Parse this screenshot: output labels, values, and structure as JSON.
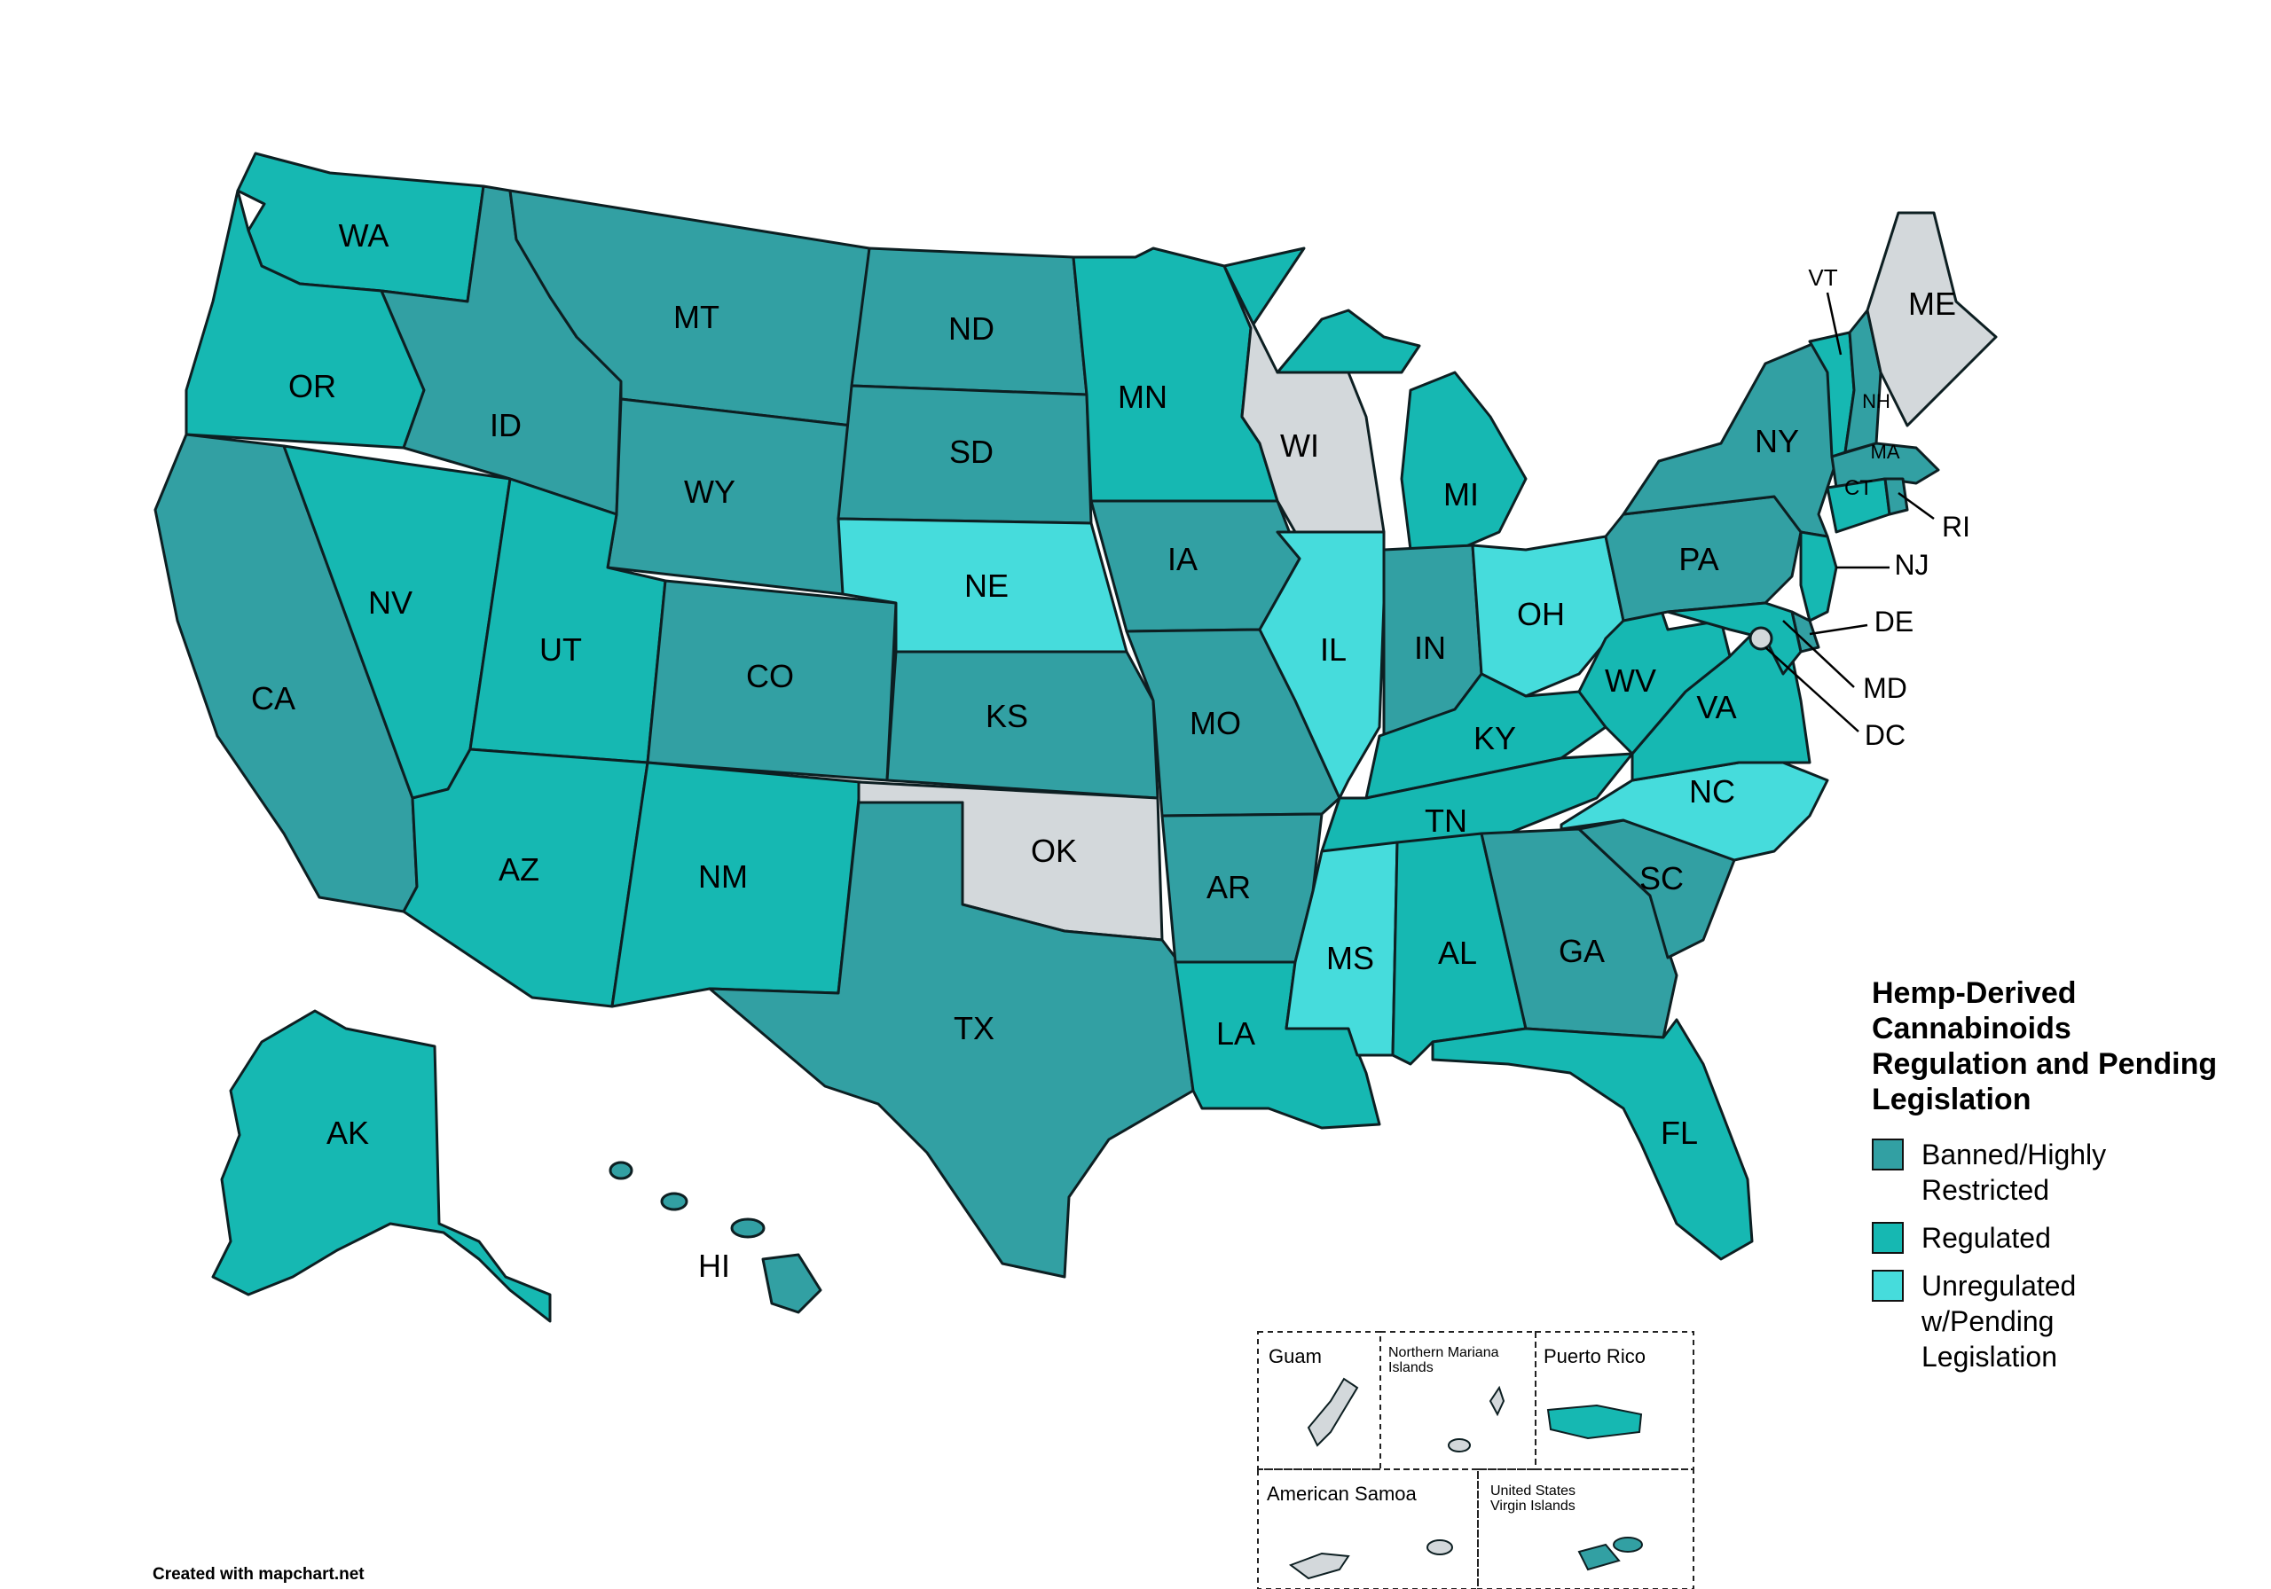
{
  "colors": {
    "banned": "#32a0a3",
    "regulated": "#16b8b2",
    "unregulated": "#46dcdc",
    "nodata": "#d3d8db",
    "border": "#0d1f22",
    "ocean": "#ffffff"
  },
  "legend": {
    "title_line1": "Hemp-Derived",
    "title_line2": "Cannabinoids",
    "title_line3": "Regulation and Pending",
    "title_line4": "Legislation",
    "items": [
      {
        "label_line1": "Banned/Highly",
        "label_line2": "Restricted",
        "label_line3": "",
        "status": "banned"
      },
      {
        "label_line1": "Regulated",
        "label_line2": "",
        "label_line3": "",
        "status": "regulated"
      },
      {
        "label_line1": "Unregulated",
        "label_line2": "w/Pending",
        "label_line3": "Legislation",
        "status": "unregulated"
      }
    ]
  },
  "credit": "Created with mapchart.net",
  "states": [
    {
      "abbr": "WA",
      "status": "regulated"
    },
    {
      "abbr": "OR",
      "status": "regulated"
    },
    {
      "abbr": "CA",
      "status": "banned"
    },
    {
      "abbr": "NV",
      "status": "regulated"
    },
    {
      "abbr": "ID",
      "status": "banned"
    },
    {
      "abbr": "MT",
      "status": "banned"
    },
    {
      "abbr": "WY",
      "status": "banned"
    },
    {
      "abbr": "UT",
      "status": "regulated"
    },
    {
      "abbr": "AZ",
      "status": "regulated"
    },
    {
      "abbr": "CO",
      "status": "banned"
    },
    {
      "abbr": "NM",
      "status": "regulated"
    },
    {
      "abbr": "ND",
      "status": "banned"
    },
    {
      "abbr": "SD",
      "status": "banned"
    },
    {
      "abbr": "NE",
      "status": "unregulated"
    },
    {
      "abbr": "KS",
      "status": "banned"
    },
    {
      "abbr": "OK",
      "status": "nodata"
    },
    {
      "abbr": "TX",
      "status": "banned"
    },
    {
      "abbr": "MN",
      "status": "regulated"
    },
    {
      "abbr": "IA",
      "status": "banned"
    },
    {
      "abbr": "MO",
      "status": "banned"
    },
    {
      "abbr": "AR",
      "status": "banned"
    },
    {
      "abbr": "LA",
      "status": "regulated"
    },
    {
      "abbr": "WI",
      "status": "nodata"
    },
    {
      "abbr": "IL",
      "status": "unregulated"
    },
    {
      "abbr": "MI",
      "status": "regulated"
    },
    {
      "abbr": "IN",
      "status": "banned"
    },
    {
      "abbr": "OH",
      "status": "unregulated"
    },
    {
      "abbr": "KY",
      "status": "regulated"
    },
    {
      "abbr": "TN",
      "status": "regulated"
    },
    {
      "abbr": "MS",
      "status": "unregulated"
    },
    {
      "abbr": "AL",
      "status": "regulated"
    },
    {
      "abbr": "GA",
      "status": "banned"
    },
    {
      "abbr": "FL",
      "status": "regulated"
    },
    {
      "abbr": "SC",
      "status": "banned"
    },
    {
      "abbr": "NC",
      "status": "unregulated"
    },
    {
      "abbr": "VA",
      "status": "regulated"
    },
    {
      "abbr": "WV",
      "status": "regulated"
    },
    {
      "abbr": "PA",
      "status": "banned"
    },
    {
      "abbr": "NY",
      "status": "banned"
    },
    {
      "abbr": "VT",
      "status": "regulated"
    },
    {
      "abbr": "NH",
      "status": "banned"
    },
    {
      "abbr": "ME",
      "status": "nodata"
    },
    {
      "abbr": "MA",
      "status": "banned"
    },
    {
      "abbr": "RI",
      "status": "banned"
    },
    {
      "abbr": "CT",
      "status": "regulated"
    },
    {
      "abbr": "NJ",
      "status": "regulated"
    },
    {
      "abbr": "DE",
      "status": "banned"
    },
    {
      "abbr": "MD",
      "status": "regulated"
    },
    {
      "abbr": "DC",
      "status": "nodata"
    },
    {
      "abbr": "AK",
      "status": "regulated"
    },
    {
      "abbr": "HI",
      "status": "banned"
    }
  ],
  "territories": [
    {
      "name": "Guam",
      "status": "nodata"
    },
    {
      "name_line1": "Northern Mariana",
      "name_line2": "Islands",
      "status": "nodata"
    },
    {
      "name": "Puerto Rico",
      "status": "regulated"
    },
    {
      "name": "American Samoa",
      "status": "nodata"
    },
    {
      "name_line1": "United States",
      "name_line2": "Virgin Islands",
      "status": "banned"
    }
  ]
}
